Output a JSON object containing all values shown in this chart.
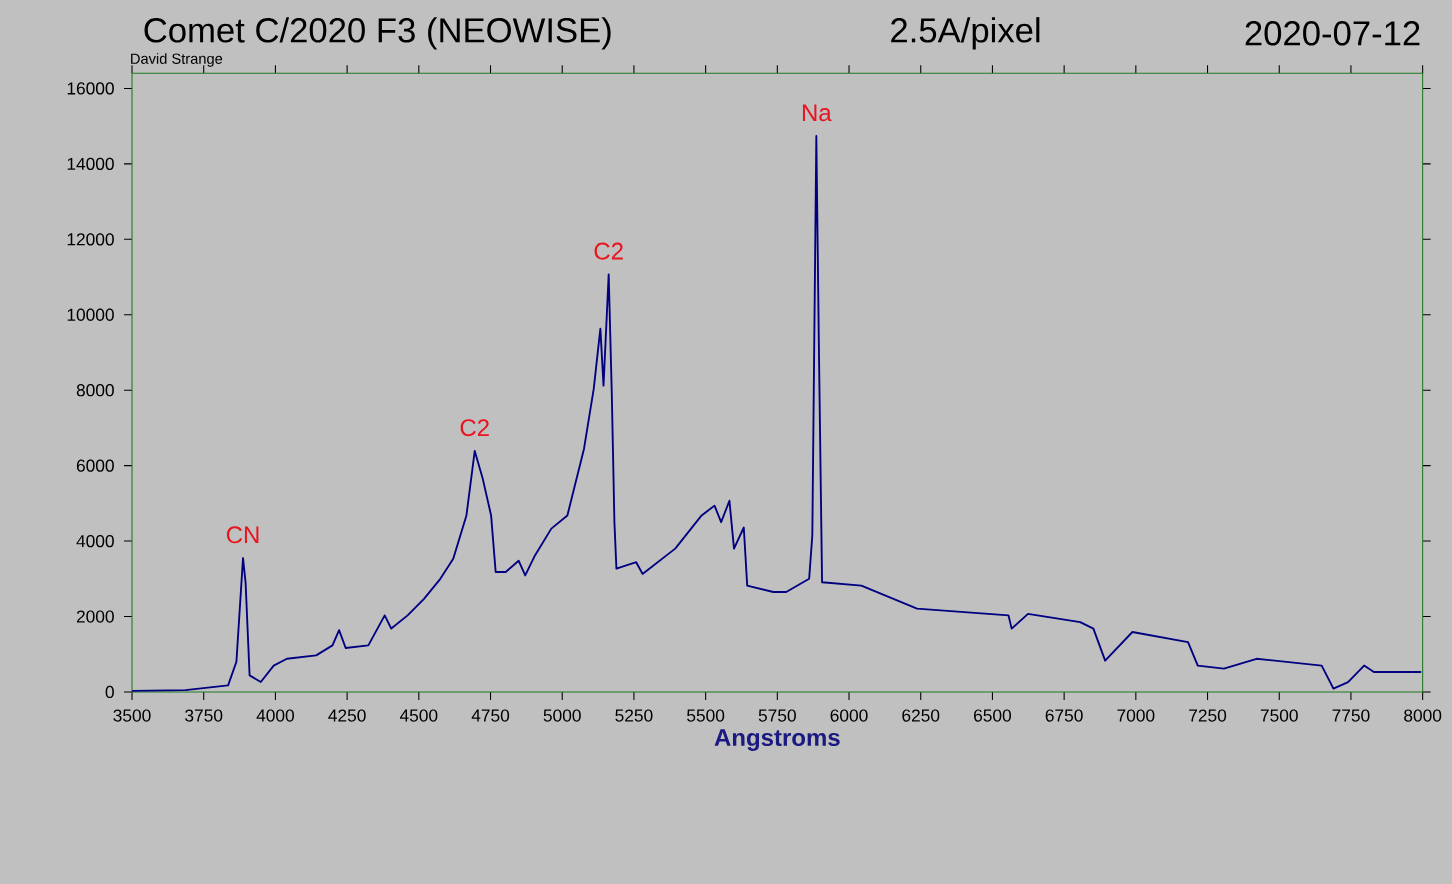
{
  "chart_data": {
    "type": "line",
    "title": "Comet C/2020 F3 (NEOWISE)",
    "subtitle": "2.5A/pixel",
    "xlabel": "Angstroms",
    "xlim": [
      3500,
      8000
    ],
    "xticks": [
      3500,
      3750,
      4000,
      4250,
      4500,
      4750,
      5000,
      5250,
      5500,
      5750,
      6000,
      6250,
      6500,
      6750,
      7000,
      7250,
      7500,
      7750,
      8000
    ],
    "ylim": [
      0,
      16400
    ],
    "yticks": [
      0,
      2000,
      4000,
      6000,
      8000,
      10000,
      12000,
      14000,
      16000
    ],
    "series": [
      {
        "color": "#000080",
        "x": [
          3500,
          3686,
          3835,
          3864,
          3887,
          3896,
          3910,
          3949,
          3994,
          4040,
          4142,
          4199,
          4222,
          4245,
          4324,
          4381,
          4404,
          4461,
          4518,
          4575,
          4620,
          4666,
          4695,
          4723,
          4752,
          4768,
          4803,
          4848,
          4871,
          4905,
          4962,
          5018,
          5076,
          5110,
          5133,
          5144,
          5162,
          5173,
          5182,
          5189,
          5258,
          5280,
          5394,
          5486,
          5531,
          5554,
          5583,
          5599,
          5633,
          5645,
          5736,
          5781,
          5861,
          5872,
          5886,
          5895,
          5906,
          6043,
          6237,
          6556,
          6567,
          6624,
          6806,
          6852,
          6893,
          6988,
          7182,
          7216,
          7307,
          7421,
          7648,
          7689,
          7740,
          7796,
          7830,
          7995
        ],
        "values": [
          30,
          50,
          175,
          800,
          3550,
          2900,
          440,
          265,
          700,
          880,
          970,
          1235,
          1640,
          1165,
          1235,
          2030,
          1680,
          2030,
          2470,
          3000,
          3530,
          4680,
          6390,
          5650,
          4680,
          3180,
          3180,
          3480,
          3090,
          3620,
          4330,
          4680,
          6450,
          8040,
          9630,
          8120,
          11070,
          7860,
          4500,
          3270,
          3440,
          3130,
          3800,
          4680,
          4940,
          4500,
          5070,
          3800,
          4360,
          2820,
          2650,
          2650,
          3000,
          4150,
          14740,
          9100,
          2910,
          2820,
          2210,
          2030,
          1680,
          2070,
          1850,
          1680,
          830,
          1590,
          1320,
          700,
          620,
          880,
          700,
          90,
          260,
          700,
          530,
          530
        ]
      }
    ],
    "annotations": [
      "2020-07-12",
      "David Strange",
      {
        "text": "CN",
        "x": 3887,
        "y": 3550
      },
      {
        "text": "C2",
        "x": 4695,
        "y": 6390
      },
      {
        "text": "C2",
        "x": 5162,
        "y": 11070
      },
      {
        "text": "Na",
        "x": 5886,
        "y": 14740
      }
    ]
  }
}
